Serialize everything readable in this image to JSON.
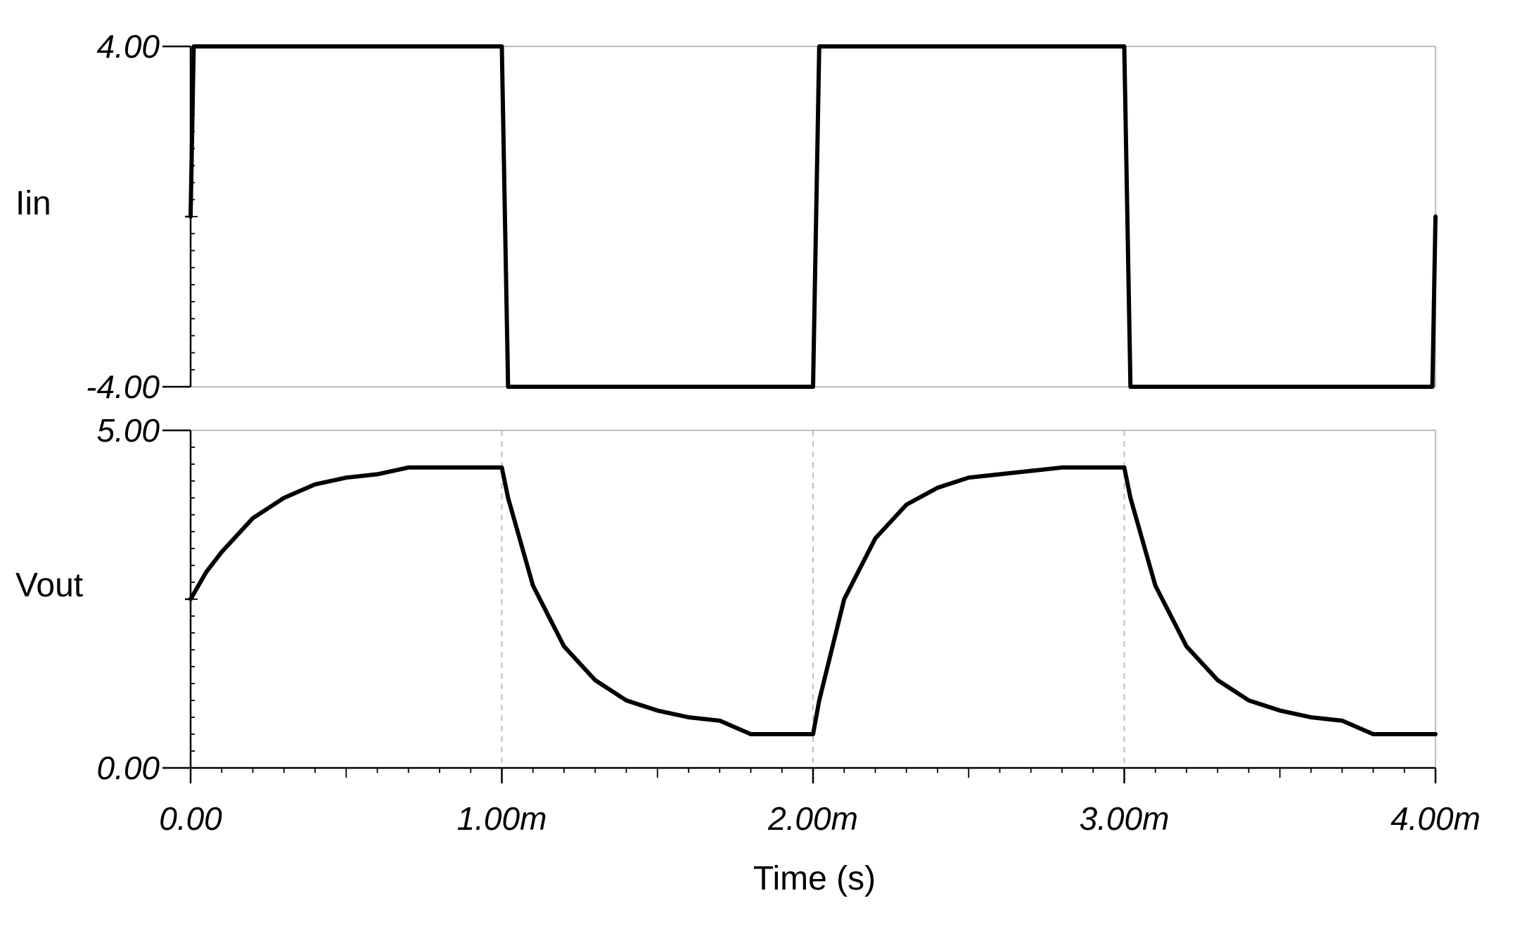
{
  "chart_data": {
    "type": "line",
    "xlabel": "Time (s)",
    "xlim": [
      0,
      0.004
    ],
    "x_ticks": [
      {
        "value": 0,
        "label": "0.00"
      },
      {
        "value": 0.001,
        "label": "1.00m"
      },
      {
        "value": 0.002,
        "label": "2.00m"
      },
      {
        "value": 0.003,
        "label": "3.00m"
      },
      {
        "value": 0.004,
        "label": "4.00m"
      }
    ],
    "grid": "vertical dashed at major time ticks",
    "panels": [
      {
        "ylabel": "Iin",
        "ylim": [
          -4,
          4
        ],
        "y_ticks": [
          {
            "value": 4,
            "label": "4.00"
          },
          {
            "value": -4,
            "label": "-4.00"
          }
        ],
        "series": [
          {
            "x": [
              0,
              1e-05,
              2e-05,
              0.001,
              0.00101,
              0.00102,
              0.002,
              0.00201,
              0.00202,
              0.003,
              0.00301,
              0.00302,
              0.00399,
              0.004
            ],
            "y": [
              0,
              4,
              4,
              4,
              0,
              -4,
              -4,
              0,
              4,
              4,
              0,
              -4,
              -4,
              0
            ]
          }
        ]
      },
      {
        "ylabel": "Vout",
        "ylim": [
          0,
          5
        ],
        "y_ticks": [
          {
            "value": 5,
            "label": "5.00"
          },
          {
            "value": 0,
            "label": "0.00"
          }
        ],
        "series": [
          {
            "x": [
              0,
              5e-05,
              0.0001,
              0.00015,
              0.0002,
              0.0003,
              0.0004,
              0.0005,
              0.0006,
              0.0007,
              0.0008,
              0.0009,
              0.001,
              0.00102,
              0.0011,
              0.0012,
              0.0013,
              0.0014,
              0.0015,
              0.0016,
              0.0017,
              0.0018,
              0.0019,
              0.002,
              0.00202,
              0.0021,
              0.0022,
              0.0023,
              0.0024,
              0.0025,
              0.0026,
              0.0027,
              0.0028,
              0.0029,
              0.003,
              0.00302,
              0.0031,
              0.0032,
              0.0033,
              0.0034,
              0.0035,
              0.0036,
              0.0037,
              0.0038,
              0.0039,
              0.004
            ],
            "y": [
              2.5,
              2.9,
              3.2,
              3.45,
              3.7,
              4.0,
              4.2,
              4.3,
              4.35,
              4.45,
              4.45,
              4.45,
              4.45,
              4.0,
              2.7,
              1.8,
              1.3,
              1.0,
              0.85,
              0.75,
              0.7,
              0.5,
              0.5,
              0.5,
              1.0,
              2.5,
              3.4,
              3.9,
              4.15,
              4.3,
              4.35,
              4.4,
              4.45,
              4.45,
              4.45,
              4.0,
              2.7,
              1.8,
              1.3,
              1.0,
              0.85,
              0.75,
              0.7,
              0.5,
              0.5,
              0.5
            ]
          }
        ]
      }
    ]
  }
}
